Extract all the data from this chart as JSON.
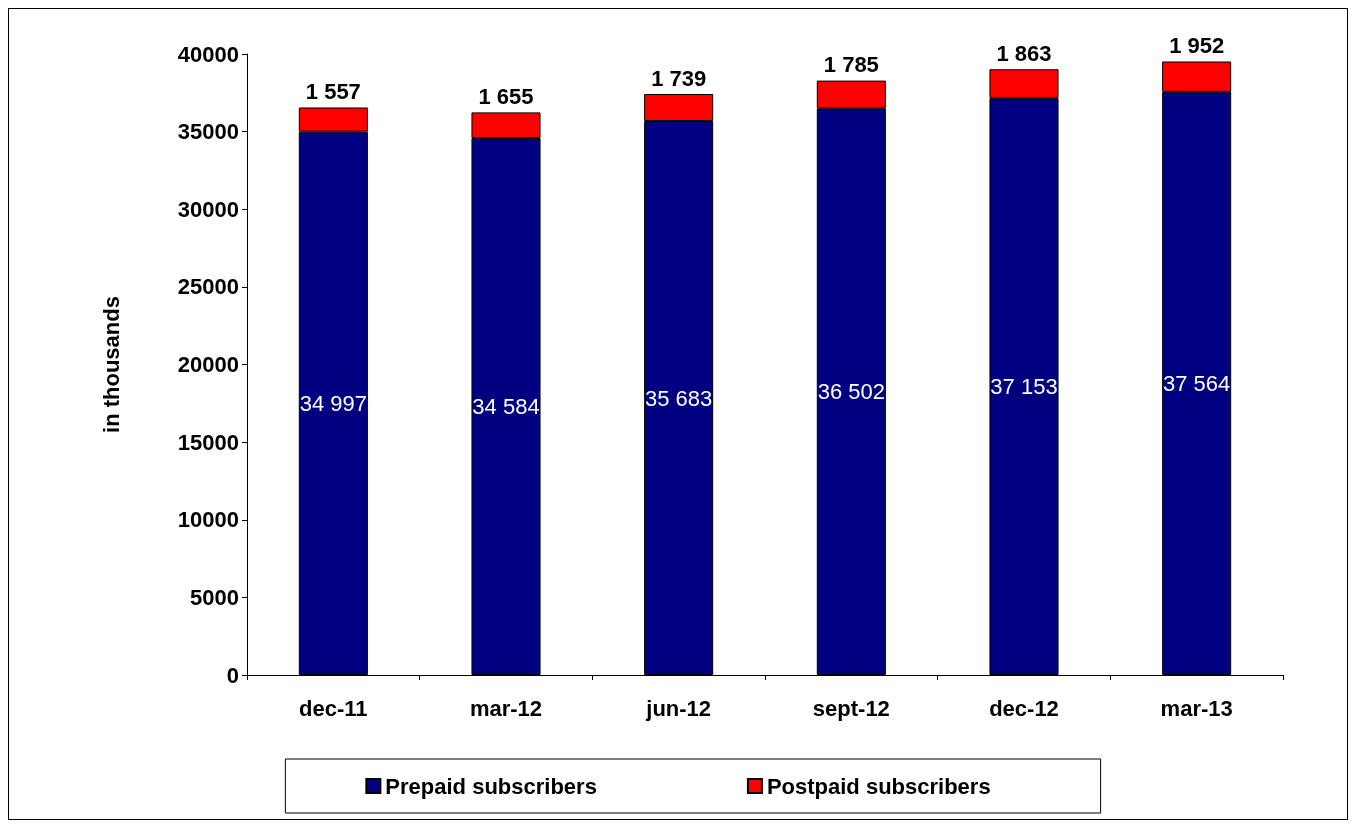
{
  "chart_data": {
    "type": "bar",
    "stacked": true,
    "ylabel": "in thousands",
    "categories": [
      "dec-11",
      "mar-12",
      "jun-12",
      "sept-12",
      "dec-12",
      "mar-13"
    ],
    "series": [
      {
        "name": "Prepaid subscribers",
        "color": "#000080",
        "values": [
          34997,
          34584,
          35683,
          36502,
          37153,
          37564
        ],
        "value_labels": [
          "34 997",
          "34 584",
          "35 683",
          "36 502",
          "37 153",
          "37 564"
        ]
      },
      {
        "name": "Postpaid subscribers",
        "color": "#ff0000",
        "values": [
          1557,
          1655,
          1739,
          1785,
          1863,
          1952
        ],
        "value_labels": [
          "1 557",
          "1 655",
          "1 739",
          "1 785",
          "1 863",
          "1 952"
        ]
      }
    ],
    "ylim": [
      0,
      40000
    ],
    "yticks": [
      0,
      5000,
      10000,
      15000,
      20000,
      25000,
      30000,
      35000,
      40000
    ],
    "grid": false,
    "legend": "bottom"
  }
}
